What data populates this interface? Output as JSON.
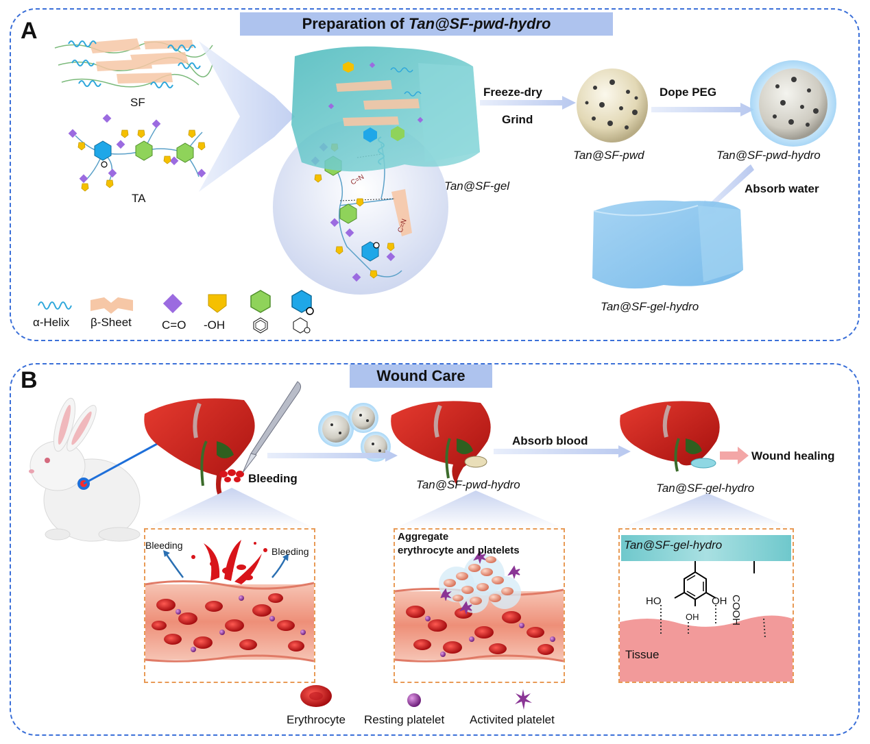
{
  "panel_a": {
    "letter": "A",
    "title_prefix": "Preparation of ",
    "title_italic": "Tan@SF-pwd-hydro",
    "labels": {
      "sf": "SF",
      "ta": "TA",
      "tan_sf_gel": "Tan@SF-gel",
      "freeze_dry": "Freeze-dry",
      "grind": "Grind",
      "dope_peg": "Dope PEG",
      "tan_sf_pwd": "Tan@SF-pwd",
      "tan_sf_pwd_hydro": "Tan@SF-pwd-hydro",
      "absorb_water": "Absorb water",
      "tan_sf_gel_hydro": "Tan@SF-gel-hydro",
      "bond_label": "C=N"
    },
    "legend": [
      {
        "icon": "alpha-helix-icon",
        "label": "α-Helix"
      },
      {
        "icon": "beta-sheet-icon",
        "label": "β-Sheet"
      },
      {
        "icon": "carbonyl-diamond-icon",
        "label": "C=O",
        "color": "#9b6be0"
      },
      {
        "icon": "hydroxyl-pentagon-icon",
        "label": "-OH",
        "color": "#f5c000"
      },
      {
        "icon": "benzene-hexagon-icon",
        "label": "",
        "color": "#8fd35a"
      },
      {
        "icon": "cyclohexane-hexagon-icon",
        "label": "",
        "color": "#1fa7e8"
      }
    ]
  },
  "panel_b": {
    "letter": "B",
    "title": "Wound Care",
    "labels": {
      "bleeding": "Bleeding",
      "tan_sf_pwd_hydro": "Tan@SF-pwd-hydro",
      "absorb_blood": "Absorb blood",
      "tan_sf_gel_hydro": "Tan@SF-gel-hydro",
      "wound_healing": "Wound healing",
      "bleeding_left": "Bleeding",
      "bleeding_right": "Bleeding",
      "aggregate_line1": "Aggregate",
      "aggregate_line2": "erythrocyte and platelets",
      "gel_layer": "Tan@SF-gel-hydro",
      "tissue": "Tissue",
      "ho_left": "HO",
      "oh_right": "OH",
      "oh_bottom": "OH",
      "cooh": "COOH"
    },
    "legend": [
      {
        "icon": "erythrocyte-icon",
        "label": "Erythrocyte",
        "color": "#d8141a"
      },
      {
        "icon": "resting-platelet-icon",
        "label": "Resting platelet",
        "color": "#9b2fa5"
      },
      {
        "icon": "activated-platelet-icon",
        "label": "Activited platelet",
        "color": "#8a3595"
      }
    ]
  },
  "colors": {
    "border": "#3a6fd8",
    "banner": "#aec3ee",
    "hydrogel": "#5fc6c8",
    "powder": "#e8e0c4",
    "liver": "#d9251f",
    "blood": "#d8141a",
    "tissue": "#f29a9a",
    "arrow": "#c5d3f2"
  }
}
